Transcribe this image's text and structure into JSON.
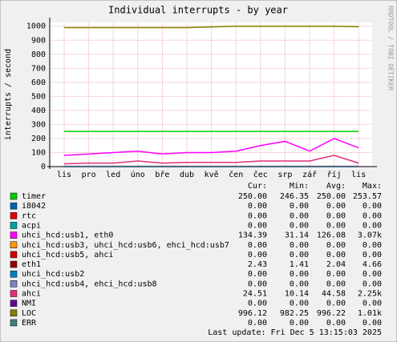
{
  "chart_data": {
    "type": "line",
    "title": "Individual interrupts - by year",
    "y_label": "interrupts / second",
    "side_label": "RRDTOOL / TOBI OETIKER",
    "categories": [
      "lis",
      "pro",
      "led",
      "úno",
      "bře",
      "dub",
      "kvě",
      "čen",
      "čec",
      "srp",
      "zář",
      "říj",
      "lis"
    ],
    "ylim": [
      0,
      1027
    ],
    "yticks": [
      0,
      100,
      200,
      300,
      400,
      500,
      600,
      700,
      800,
      900,
      1000
    ],
    "grid": true,
    "stat_headers": [
      "Cur:",
      "Min:",
      "Avg:",
      "Max:"
    ],
    "series": [
      {
        "name": "timer",
        "color": "#00cc00",
        "values": [
          250,
          250,
          250,
          250,
          250,
          250,
          250,
          250,
          250,
          250,
          250,
          250,
          250
        ],
        "stats": [
          "250.00",
          "246.35",
          "250.00",
          "253.57"
        ]
      },
      {
        "name": "i8042",
        "color": "#0066b3",
        "values": [
          0,
          0,
          0,
          0,
          0,
          0,
          0,
          0,
          0,
          0,
          0,
          0,
          0
        ],
        "stats": [
          "0.00",
          "0.00",
          "0.00",
          "0.00"
        ]
      },
      {
        "name": "rtc",
        "color": "#e00000",
        "values": [
          0,
          0,
          0,
          0,
          0,
          0,
          0,
          0,
          0,
          0,
          0,
          0,
          0
        ],
        "stats": [
          "0.00",
          "0.00",
          "0.00",
          "0.00"
        ]
      },
      {
        "name": "acpi",
        "color": "#00a0a0",
        "values": [
          0,
          0,
          0,
          0,
          0,
          0,
          0,
          0,
          0,
          0,
          0,
          0,
          0
        ],
        "stats": [
          "0.00",
          "0.00",
          "0.00",
          "0.00"
        ]
      },
      {
        "name": "uhci_hcd:usb1, eth0",
        "color": "#ff00ff",
        "values": [
          80,
          90,
          100,
          110,
          90,
          100,
          100,
          110,
          150,
          180,
          110,
          200,
          134
        ],
        "stats": [
          "134.39",
          "31.14",
          "126.08",
          "3.07k"
        ]
      },
      {
        "name": "uhci_hcd:usb3, uhci_hcd:usb6, ehci_hcd:usb7",
        "color": "#ff9900",
        "values": [
          0,
          0,
          0,
          0,
          0,
          0,
          0,
          0,
          0,
          0,
          0,
          0,
          0
        ],
        "stats": [
          "0.00",
          "0.00",
          "0.00",
          "0.00"
        ]
      },
      {
        "name": "uhci_hcd:usb5, ahci",
        "color": "#cc0000",
        "values": [
          0,
          0,
          0,
          0,
          0,
          0,
          0,
          0,
          0,
          0,
          0,
          0,
          0
        ],
        "stats": [
          "0.00",
          "0.00",
          "0.00",
          "0.00"
        ]
      },
      {
        "name": "eth1",
        "color": "#990000",
        "values": [
          2,
          2,
          2,
          2,
          2,
          2,
          2,
          2,
          2,
          2,
          2,
          2,
          2
        ],
        "stats": [
          "2.43",
          "1.41",
          "2.04",
          "4.66"
        ]
      },
      {
        "name": "uhci_hcd:usb2",
        "color": "#0080c0",
        "values": [
          0,
          0,
          0,
          0,
          0,
          0,
          0,
          0,
          0,
          0,
          0,
          0,
          0
        ],
        "stats": [
          "0.00",
          "0.00",
          "0.00",
          "0.00"
        ]
      },
      {
        "name": "uhci_hcd:usb4, ehci_hcd:usb8",
        "color": "#8080c0",
        "values": [
          0,
          0,
          0,
          0,
          0,
          0,
          0,
          0,
          0,
          0,
          0,
          0,
          0
        ],
        "stats": [
          "0.00",
          "0.00",
          "0.00",
          "0.00"
        ]
      },
      {
        "name": "ahci",
        "color": "#e0307a",
        "values": [
          20,
          25,
          25,
          40,
          25,
          30,
          30,
          30,
          40,
          40,
          40,
          80,
          25
        ],
        "stats": [
          "24.51",
          "10.14",
          "44.58",
          "2.25k"
        ]
      },
      {
        "name": "NMI",
        "color": "#660099",
        "values": [
          0,
          0,
          0,
          0,
          0,
          0,
          0,
          0,
          0,
          0,
          0,
          0,
          0
        ],
        "stats": [
          "0.00",
          "0.00",
          "0.00",
          "0.00"
        ]
      },
      {
        "name": "LOC",
        "color": "#808000",
        "values": [
          990,
          990,
          990,
          990,
          990,
          990,
          995,
          1000,
          1000,
          1000,
          1000,
          1000,
          996
        ],
        "stats": [
          "996.12",
          "982.25",
          "996.22",
          "1.01k"
        ]
      },
      {
        "name": "ERR",
        "color": "#407f7f",
        "values": [
          0,
          0,
          0,
          0,
          0,
          0,
          0,
          0,
          0,
          0,
          0,
          0,
          0
        ],
        "stats": [
          "0.00",
          "0.00",
          "0.00",
          "0.00"
        ]
      }
    ],
    "last_update": "Last update: Fri Dec  5 13:15:03 2025"
  }
}
